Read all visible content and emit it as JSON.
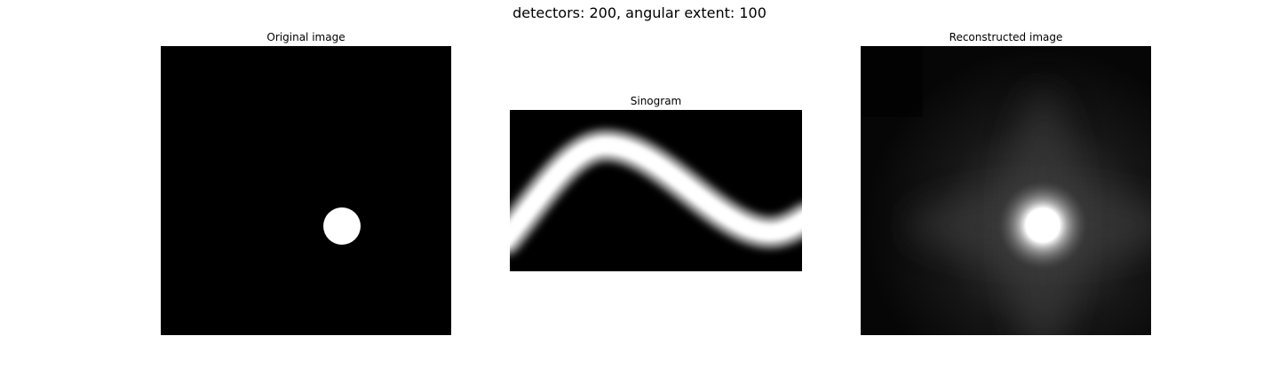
{
  "figure": {
    "title": "detectors: 200, angular extent: 100"
  },
  "panels": {
    "original": {
      "title": "Original image"
    },
    "sinogram": {
      "title": "Sinogram"
    },
    "reconstructed": {
      "title": "Reconstructed image"
    }
  },
  "colors": {
    "background": "#000000",
    "object": "#ffffff",
    "figure_background": "#ffffff"
  }
}
